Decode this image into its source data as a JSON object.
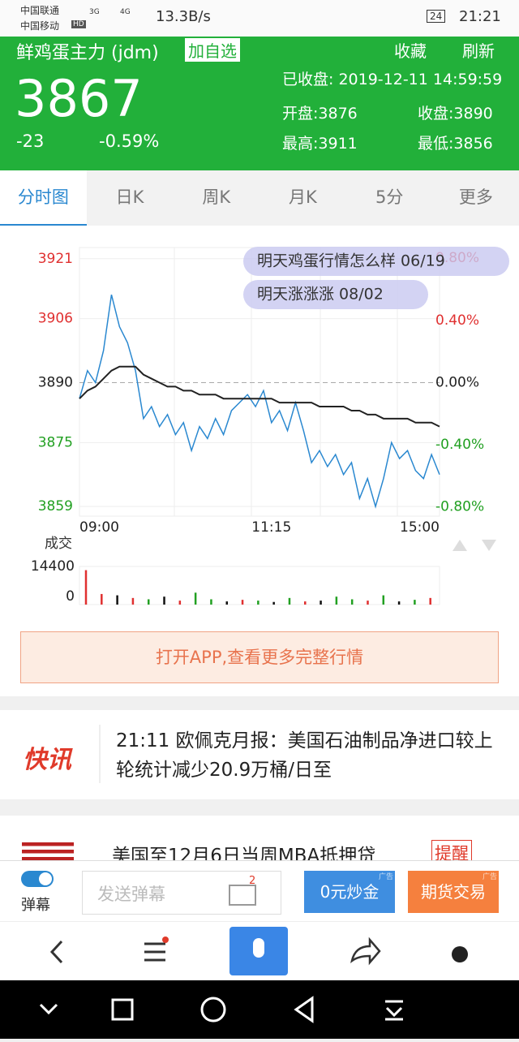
{
  "status_bar": {
    "carrier1": "中国联通",
    "carrier2": "中国移动",
    "hd": "HD",
    "net1": "3G",
    "net2": "4G",
    "speed": "13.3B/s",
    "battery": "24",
    "time": "21:21"
  },
  "header": {
    "name": "鲜鸡蛋主力 (jdm)",
    "add": "加自选",
    "favorite": "收藏",
    "refresh": "刷新",
    "price": "3867",
    "change": "-23",
    "change_pct": "-0.59%",
    "status": "已收盘: 2019-12-11 14:59:59",
    "open": "开盘:3876",
    "close": "收盘:3890",
    "high": "最高:3911",
    "low": "最低:3856"
  },
  "tabs": [
    "分时图",
    "日K",
    "周K",
    "月K",
    "5分",
    "更多"
  ],
  "chart_data": [
    {
      "type": "line",
      "categories": [
        "09:00",
        null,
        null,
        null,
        null,
        null,
        null,
        null,
        null,
        null,
        null,
        null,
        null,
        null,
        null,
        null,
        null,
        null,
        null,
        null,
        null,
        null,
        null,
        null,
        "11:15",
        null,
        null,
        null,
        null,
        null,
        null,
        null,
        null,
        null,
        null,
        null,
        null,
        null,
        null,
        null,
        null,
        null,
        null,
        null,
        null,
        "15:00"
      ],
      "series": [
        {
          "color": "#2a88d0",
          "values": [
            3886,
            3893,
            3890,
            3898,
            3912,
            3904,
            3900,
            3893,
            3881,
            3884,
            3879,
            3882,
            3877,
            3880,
            3873,
            3879,
            3876,
            3881,
            3877,
            3883,
            3885,
            3887,
            3884,
            3888,
            3880,
            3883,
            3878,
            3885,
            3878,
            3870,
            3873,
            3869,
            3872,
            3867,
            3870,
            3861,
            3866,
            3859,
            3866,
            3875,
            3871,
            3873,
            3868,
            3866,
            3872,
            3867
          ]
        },
        {
          "color": "#222222",
          "values": [
            3886,
            3888,
            3889,
            3891,
            3893,
            3894,
            3894,
            3894,
            3892,
            3891,
            3890,
            3889,
            3889,
            3888,
            3888,
            3887,
            3887,
            3887,
            3886,
            3886,
            3886,
            3886,
            3886,
            3886,
            3886,
            3885,
            3885,
            3885,
            3885,
            3885,
            3884,
            3884,
            3884,
            3884,
            3883,
            3883,
            3882,
            3882,
            3881,
            3881,
            3881,
            3881,
            3880,
            3880,
            3880,
            3879
          ]
        }
      ],
      "ylim": [
        3856.6,
        3923.8
      ],
      "yticks": [
        3859,
        3875,
        3890,
        3906,
        3921
      ],
      "y2lim": [
        -0.859,
        0.869
      ],
      "y2ticks": [
        {
          "value": -0.8,
          "label": "-0.80%"
        },
        {
          "value": -0.4,
          "label": "-0.40%"
        },
        {
          "value": 0,
          "label": "0.00%"
        },
        {
          "value": 0.4,
          "label": "0.40%"
        },
        {
          "value": 0.8,
          "label": "0.80%"
        }
      ],
      "danmaku": [
        "明天鸡蛋行情怎么样 06/19",
        "明天涨涨涨 08/02"
      ]
    },
    {
      "type": "bar",
      "title": "成交",
      "values": [
        13000,
        4000,
        3500,
        2500,
        2000,
        3000,
        1500,
        4500,
        2000,
        1200,
        1800,
        1500,
        1000,
        2500,
        1200,
        1500,
        3000,
        2000,
        1500,
        3500,
        1200,
        1800,
        2500
      ],
      "colors": [
        "#e03030",
        "#e03030",
        "#111111",
        "#e03030",
        "#22a022",
        "#111111",
        "#e03030",
        "#22a022",
        "#22a022",
        "#111111",
        "#e03030",
        "#22a022",
        "#111111",
        "#22a022",
        "#e03030",
        "#111111",
        "#22a022",
        "#22a022",
        "#e03030",
        "#22a022",
        "#111111",
        "#22a022",
        "#e03030"
      ],
      "ylim": [
        0,
        14400
      ],
      "yticks": [
        0,
        14400
      ]
    }
  ],
  "banner": "打开APP,查看更多完整行情",
  "news": [
    {
      "logo": "快讯",
      "text": "21:11  欧佩克月报：美国石油制品净进口较上轮统计减少20.9万桶/日至"
    },
    {
      "text": "美国至12月6日当周MBA抵押贷",
      "remind": "提醒"
    }
  ],
  "bottom_bar": {
    "toggle": "弹幕",
    "input": "发送弹幕",
    "badge": "2",
    "btn1": "0元炒金",
    "ad1": "广告",
    "btn2": "期货交易",
    "ad2": "广告"
  }
}
